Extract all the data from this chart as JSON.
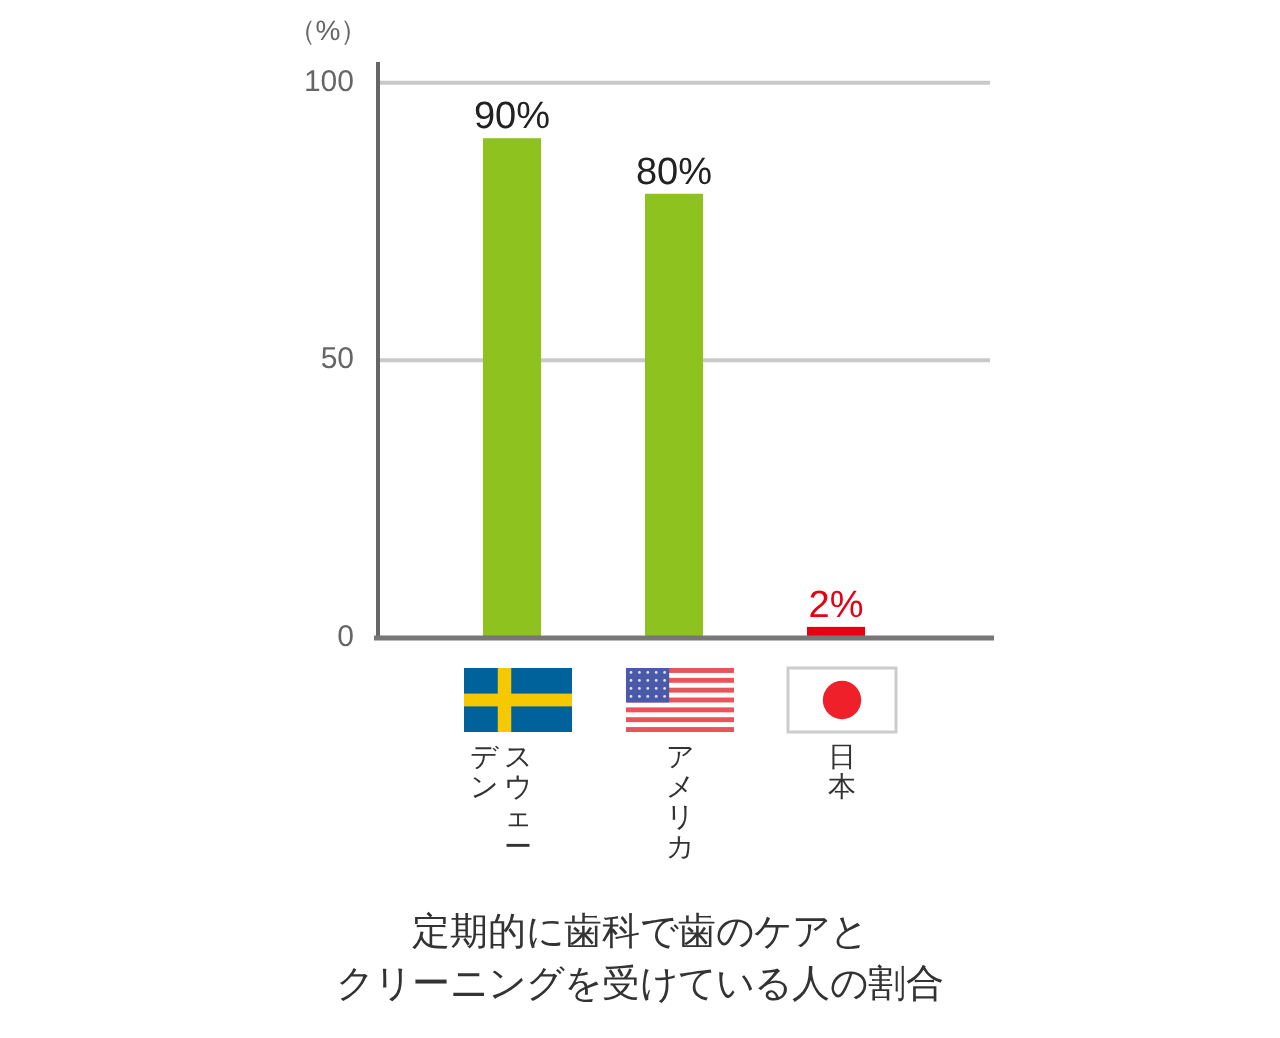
{
  "chart_data": {
    "type": "bar",
    "title": "定期的に歯科で歯のケアとクリーニングを受けている人の割合",
    "ylabel": "（%）",
    "categories": [
      "スウェーデン",
      "アメリカ",
      "日本"
    ],
    "values": [
      90,
      80,
      2
    ],
    "colors": [
      "#8dc21f",
      "#8dc21f",
      "#e60012"
    ],
    "value_labels": [
      "90%",
      "80%",
      "2%"
    ],
    "ylim": [
      0,
      103
    ],
    "yticks": [
      0,
      50,
      100
    ],
    "grid": "y"
  }
}
